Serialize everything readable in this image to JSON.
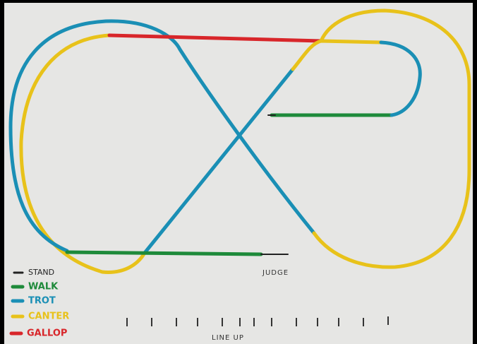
{
  "legend": [
    "STAND",
    "WALK",
    "TROT",
    "CANTER",
    "GALLOP"
  ],
  "labels": {
    "judge": "JUDGE",
    "line_up": "LINE UP"
  }
}
